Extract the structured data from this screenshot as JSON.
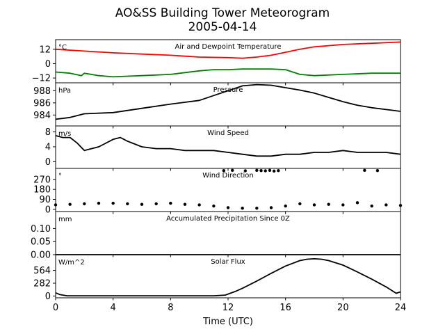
{
  "figure": {
    "title": "AO&SS Building Tower Meteorogram",
    "subtitle": "2005-04-14",
    "xlabel": "Time (UTC)"
  },
  "chart_data": [
    {
      "type": "line",
      "title": "Air and Dewpoint Temperature",
      "unit_label": "°C",
      "xlim": [
        0,
        24
      ],
      "ylim": [
        -16,
        20
      ],
      "yticks": [
        12,
        0,
        -12
      ],
      "ytick_labels": [
        "12",
        "0",
        "−12"
      ],
      "series": [
        {
          "color": "#ff0000",
          "x": [
            0,
            2,
            4,
            6,
            8,
            10,
            12,
            13,
            14,
            15,
            16,
            17,
            18,
            19,
            20,
            22,
            24
          ],
          "values": [
            12,
            10.5,
            9,
            8,
            7,
            5.5,
            5,
            4.5,
            5.5,
            7,
            9.5,
            12,
            14,
            15,
            16,
            17,
            18
          ]
        },
        {
          "color": "#008000",
          "x": [
            0,
            1,
            1.8,
            2,
            3,
            4,
            6,
            8,
            10,
            11,
            12,
            13,
            14,
            15,
            16,
            17,
            18,
            20,
            22,
            24
          ],
          "values": [
            -7,
            -8,
            -10,
            -8,
            -10,
            -11,
            -10,
            -9,
            -6,
            -5,
            -5,
            -4.5,
            -4.5,
            -4.5,
            -5,
            -9,
            -10,
            -9,
            -8,
            -8
          ]
        }
      ]
    },
    {
      "type": "line",
      "title": "Pressure",
      "unit_label": "hPa",
      "xlim": [
        0,
        24
      ],
      "ylim": [
        982.2,
        989.3
      ],
      "yticks": [
        988,
        986,
        984
      ],
      "ytick_labels": [
        "988",
        "986",
        "984"
      ],
      "series": [
        {
          "color": "#000000",
          "x": [
            0,
            1,
            2,
            4,
            6,
            8,
            10,
            11,
            12,
            13,
            14,
            15,
            16,
            17,
            18,
            19,
            20,
            21,
            22,
            23,
            24
          ],
          "values": [
            983.3,
            983.6,
            984.2,
            984.4,
            985.1,
            985.8,
            986.4,
            987.2,
            988.0,
            988.8,
            989.0,
            988.9,
            988.5,
            988.1,
            987.6,
            986.9,
            986.2,
            985.6,
            985.2,
            984.9,
            984.6
          ]
        }
      ]
    },
    {
      "type": "line",
      "title": "Wind Speed",
      "unit_label": "m/s",
      "xlim": [
        0,
        24
      ],
      "ylim": [
        -1.8,
        9.6
      ],
      "yticks": [
        8,
        4,
        0
      ],
      "ytick_labels": [
        "8",
        "4",
        "0"
      ],
      "series": [
        {
          "color": "#000000",
          "x": [
            0,
            0.5,
            1,
            1.5,
            2,
            3,
            4,
            4.5,
            5,
            6,
            7,
            8,
            9,
            10,
            11,
            12,
            13,
            14,
            15,
            16,
            17,
            18,
            19,
            20,
            21,
            22,
            23,
            24
          ],
          "values": [
            7,
            6.5,
            6.5,
            5,
            3,
            4,
            6,
            6.5,
            5.5,
            4,
            3.5,
            3.5,
            3,
            3,
            3,
            2.5,
            2,
            1.5,
            1.5,
            2,
            2,
            2.5,
            2.5,
            3,
            2.5,
            2.5,
            2.5,
            2
          ]
        }
      ]
    },
    {
      "type": "scatter",
      "title": "Wind Direction",
      "unit_label": "°",
      "xlim": [
        0,
        24
      ],
      "ylim": [
        -20,
        370
      ],
      "yticks": [
        270,
        180,
        90,
        0
      ],
      "ytick_labels": [
        "270",
        "180",
        "90",
        "0"
      ],
      "series": [
        {
          "color": "#000000",
          "x": [
            0,
            1,
            2,
            3,
            4,
            5,
            6,
            7,
            8,
            9,
            10,
            11,
            12,
            13,
            14,
            15,
            16,
            17,
            18,
            19,
            20,
            21,
            22,
            23,
            24
          ],
          "values": [
            40,
            45,
            50,
            55,
            55,
            50,
            45,
            50,
            55,
            45,
            40,
            30,
            15,
            10,
            10,
            15,
            30,
            50,
            40,
            45,
            40,
            60,
            30,
            40,
            35
          ]
        },
        {
          "color": "#000000",
          "x": [
            11.7,
            12.3,
            13.2,
            14,
            14.3,
            14.6,
            14.9,
            15.2,
            15.5,
            21.5,
            22.4
          ],
          "values": [
            350,
            352,
            348,
            352,
            350,
            348,
            352,
            346,
            350,
            352,
            350
          ]
        }
      ]
    },
    {
      "type": "line",
      "title": "Accumulated Precipitation Since 0Z",
      "unit_label": "mm",
      "xlim": [
        0,
        24
      ],
      "ylim": [
        0,
        0.165
      ],
      "yticks": [
        0.1,
        0.05,
        0.0
      ],
      "ytick_labels": [
        "0.10",
        "0.05",
        "0.00"
      ],
      "series": [
        {
          "color": "#000000",
          "x": [
            0,
            24
          ],
          "values": [
            0,
            0
          ]
        }
      ]
    },
    {
      "type": "line",
      "title": "Solar Flux",
      "unit_label": "W/m^2",
      "xlim": [
        0,
        24
      ],
      "ylim": [
        -40,
        910
      ],
      "yticks": [
        564,
        282,
        0
      ],
      "ytick_labels": [
        "564",
        "282",
        "0"
      ],
      "series": [
        {
          "color": "#000000",
          "x": [
            0,
            0.3,
            0.8,
            2,
            4,
            6,
            8,
            10,
            11,
            11.8,
            12.5,
            13,
            14,
            15,
            16,
            17,
            17.5,
            18,
            18.5,
            19,
            20,
            21,
            22,
            23,
            23.7,
            24
          ],
          "values": [
            70,
            30,
            5,
            5,
            5,
            5,
            5,
            5,
            5,
            20,
            100,
            170,
            330,
            500,
            660,
            780,
            810,
            820,
            810,
            780,
            680,
            530,
            370,
            200,
            60,
            90
          ]
        }
      ]
    }
  ],
  "xaxis": {
    "ticks": [
      0,
      4,
      8,
      12,
      16,
      20,
      24
    ],
    "tick_labels": [
      "0",
      "4",
      "8",
      "12",
      "16",
      "20",
      "24"
    ]
  }
}
